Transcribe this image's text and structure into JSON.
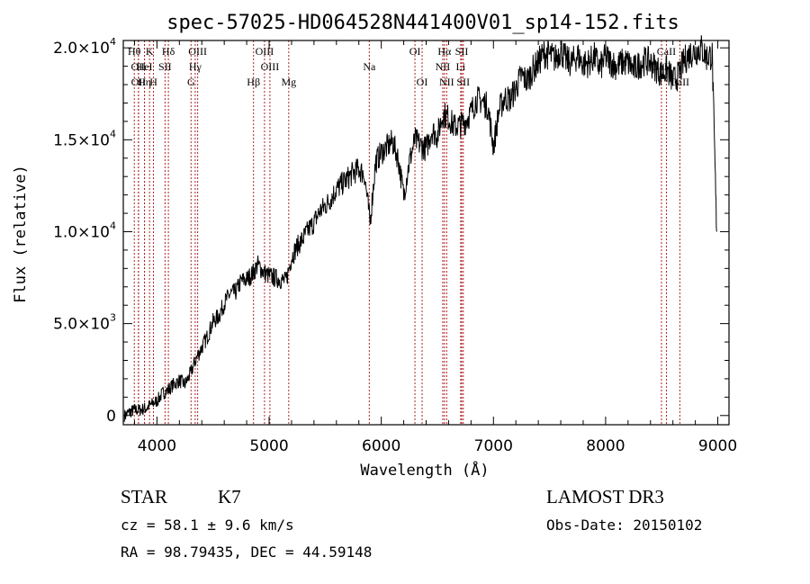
{
  "chart_data": {
    "type": "line",
    "title": "spec-57025-HD064528N441400V01_sp14-152.fits",
    "xlabel": "Wavelength (Å)",
    "ylabel": "Flux (relative)",
    "xlim": [
      3700,
      9100
    ],
    "ylim": [
      -500,
      20400
    ],
    "grid": false,
    "x_ticks": [
      4000,
      5000,
      6000,
      7000,
      8000,
      9000
    ],
    "x_tick_labels": [
      "4000",
      "5000",
      "6000",
      "7000",
      "8000",
      "9000"
    ],
    "y_ticks": [
      0,
      5000,
      10000,
      15000,
      20000
    ],
    "y_tick_labels": [
      {
        "mantissa": "0",
        "exp": ""
      },
      {
        "mantissa": "5.0×10",
        "exp": "3"
      },
      {
        "mantissa": "1.0×10",
        "exp": "4"
      },
      {
        "mantissa": "1.5×10",
        "exp": "4"
      },
      {
        "mantissa": "2.0×10",
        "exp": "4"
      }
    ],
    "series": [
      {
        "color": "#000000",
        "x": [
          3710,
          3760,
          3800,
          3850,
          3900,
          3950,
          4000,
          4050,
          4100,
          4150,
          4200,
          4250,
          4300,
          4350,
          4400,
          4450,
          4500,
          4550,
          4600,
          4650,
          4700,
          4750,
          4800,
          4850,
          4900,
          4950,
          5000,
          5050,
          5100,
          5150,
          5200,
          5250,
          5300,
          5350,
          5400,
          5450,
          5500,
          5550,
          5600,
          5650,
          5700,
          5750,
          5800,
          5850,
          5900,
          5950,
          6000,
          6050,
          6100,
          6150,
          6200,
          6250,
          6300,
          6350,
          6400,
          6450,
          6500,
          6550,
          6600,
          6650,
          6700,
          6750,
          6800,
          6850,
          6900,
          6950,
          7000,
          7050,
          7100,
          7150,
          7200,
          7250,
          7300,
          7350,
          7400,
          7450,
          7500,
          7550,
          7600,
          7650,
          7700,
          7750,
          7800,
          7850,
          7900,
          7950,
          8000,
          8050,
          8100,
          8150,
          8200,
          8250,
          8300,
          8350,
          8400,
          8450,
          8500,
          8550,
          8600,
          8650,
          8700,
          8750,
          8800,
          8850,
          8900,
          8950,
          8990
        ],
        "y": [
          0,
          200,
          300,
          300,
          400,
          600,
          800,
          1200,
          1400,
          1700,
          1900,
          1700,
          2300,
          3100,
          3700,
          4300,
          5100,
          5400,
          6100,
          6600,
          6700,
          7300,
          7400,
          7700,
          8200,
          7800,
          7600,
          7500,
          7400,
          7300,
          8600,
          9200,
          9600,
          10100,
          10500,
          11100,
          11400,
          11800,
          12300,
          12600,
          12900,
          13200,
          13400,
          13100,
          10500,
          13800,
          14300,
          14600,
          14900,
          14000,
          12000,
          13800,
          15000,
          14700,
          14500,
          15500,
          15200,
          16400,
          16200,
          15700,
          15800,
          16000,
          16500,
          17200,
          17100,
          16800,
          14600,
          16600,
          17300,
          17200,
          17800,
          18500,
          18200,
          18800,
          19200,
          19700,
          19600,
          19400,
          19900,
          19300,
          19200,
          19600,
          19100,
          19200,
          19500,
          18900,
          19500,
          19200,
          19000,
          19200,
          19200,
          18800,
          19100,
          19300,
          19200,
          18900,
          18600,
          18800,
          18200,
          18500,
          19300,
          19700,
          19800,
          20000,
          19500,
          19600,
          10000
        ]
      }
    ],
    "line_markers": [
      {
        "x": 3798,
        "label": "Hθ",
        "row": 1
      },
      {
        "x": 3835,
        "label": "OII",
        "row": 2
      },
      {
        "x": 3836,
        "label": "OII",
        "row": 3
      },
      {
        "x": 3889,
        "label": "HeI",
        "row": 2
      },
      {
        "x": 3889,
        "label": "Hη",
        "row": 3
      },
      {
        "x": 3934,
        "label": "K",
        "row": 1
      },
      {
        "x": 3969,
        "label": "H",
        "row": 3
      },
      {
        "x": 4072,
        "label": "SII",
        "row": 2
      },
      {
        "x": 4102,
        "label": "Hδ",
        "row": 1
      },
      {
        "x": 4304,
        "label": "G",
        "row": 3
      },
      {
        "x": 4341,
        "label": "Hγ",
        "row": 2
      },
      {
        "x": 4363,
        "label": "OIII",
        "row": 1
      },
      {
        "x": 4861,
        "label": "Hβ",
        "row": 3
      },
      {
        "x": 4959,
        "label": "OIII",
        "row": 1
      },
      {
        "x": 5007,
        "label": "OIII",
        "row": 2
      },
      {
        "x": 5175,
        "label": "Mg",
        "row": 3
      },
      {
        "x": 5893,
        "label": "Na",
        "row": 2
      },
      {
        "x": 6300,
        "label": "OI",
        "row": 1
      },
      {
        "x": 6364,
        "label": "OI",
        "row": 3
      },
      {
        "x": 6548,
        "label": "NII",
        "row": 2
      },
      {
        "x": 6563,
        "label": "Hα",
        "row": 1
      },
      {
        "x": 6583,
        "label": "NII",
        "row": 3
      },
      {
        "x": 6708,
        "label": "Li",
        "row": 2
      },
      {
        "x": 6717,
        "label": "SII",
        "row": 1
      },
      {
        "x": 6731,
        "label": "SII",
        "row": 3
      },
      {
        "x": 8498,
        "label": "CaII",
        "row": 2
      },
      {
        "x": 8542,
        "label": "CaII",
        "row": 1
      },
      {
        "x": 8662,
        "label": "CaII",
        "row": 3
      }
    ],
    "marker_color": "#b22222"
  },
  "info": {
    "class_label": "STAR",
    "subclass_label": "K7",
    "survey_label": "LAMOST DR3",
    "redshift_text": "cz = 58.1 ± 9.6 km/s",
    "obs_date_text": "Obs-Date: 20150102",
    "coords_text": "RA =  98.79435, DEC =  44.59148"
  }
}
